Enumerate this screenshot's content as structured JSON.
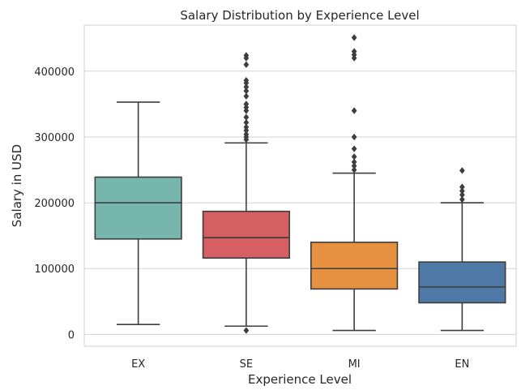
{
  "chart_data": {
    "type": "box",
    "title": "Salary Distribution by Experience Level",
    "xlabel": "Experience Level",
    "ylabel": "Salary in USD",
    "ylim": [
      -18000,
      470000
    ],
    "yticks": [
      0,
      100000,
      200000,
      300000,
      400000
    ],
    "grid": "y",
    "categories": [
      "EX",
      "SE",
      "MI",
      "EN"
    ],
    "colors": [
      "#77b6ad",
      "#d55f62",
      "#e5913f",
      "#4f7aa7"
    ],
    "edge_color": "#3d3d3d",
    "boxes": [
      {
        "label": "EX",
        "whisker_low": 15000,
        "q1": 145000,
        "median": 200000,
        "q3": 239000,
        "whisker_high": 353000,
        "outliers": []
      },
      {
        "label": "SE",
        "whisker_low": 12500,
        "q1": 116000,
        "median": 147000,
        "q3": 187000,
        "whisker_high": 291000,
        "outliers": [
          6000,
          296000,
          300000,
          304000,
          310000,
          315000,
          322000,
          330000,
          340000,
          345000,
          350000,
          362000,
          370000,
          376000,
          382000,
          386000,
          410000,
          420000,
          424000
        ]
      },
      {
        "label": "MI",
        "whisker_low": 6000,
        "q1": 69000,
        "median": 100000,
        "q3": 140000,
        "whisker_high": 245000,
        "outliers": [
          250000,
          256000,
          262000,
          270000,
          282000,
          300000,
          340000,
          420000,
          425000,
          430000,
          451000
        ]
      },
      {
        "label": "EN",
        "whisker_low": 6000,
        "q1": 48000,
        "median": 72000,
        "q3": 110000,
        "whisker_high": 200000,
        "outliers": [
          205000,
          212000,
          218000,
          224000,
          249000
        ]
      }
    ]
  }
}
